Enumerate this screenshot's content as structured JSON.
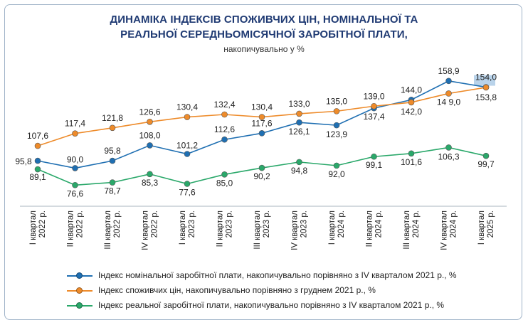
{
  "chart_data": {
    "type": "line",
    "title_lines": [
      "ДИНАМІКА ІНДЕКСІВ СПОЖИВЧИХ ЦІН, НОМІНАЛЬНОЇ ТА",
      "РЕАЛЬНОЇ СЕРЕДНЬОМІСЯЧНОЇ ЗАРОБІТНОЇ ПЛАТИ,"
    ],
    "subtitle": "накопичувально у %",
    "categories": [
      [
        "I квартал",
        "2022 р."
      ],
      [
        "II квартал",
        "2022 р."
      ],
      [
        "III квартал",
        "2022 р."
      ],
      [
        "IV квартал",
        "2022 р."
      ],
      [
        "I квартал",
        "2023 р."
      ],
      [
        "II квартал",
        "2023 р."
      ],
      [
        "III квартал",
        "2023 р."
      ],
      [
        "IV квартал",
        "2023 р."
      ],
      [
        "I квартал",
        "2024 р."
      ],
      [
        "II квартал",
        "2024 р."
      ],
      [
        "III квартал",
        "2024 р."
      ],
      [
        "IV квартал",
        "2024 р."
      ],
      [
        "I квартал",
        "2025 р."
      ]
    ],
    "series": [
      {
        "name": "Індекс номінальної заробітної плати, накопичувально порівняно з IV кварталом 2021 р., %",
        "color": "#1f6fb2",
        "values": [
          95.8,
          90.0,
          95.8,
          108.0,
          101.2,
          112.6,
          117.6,
          126.1,
          123.9,
          137.4,
          144.0,
          158.9,
          154.0
        ],
        "labels": [
          "95,8",
          "90,0",
          "95,8",
          "108,0",
          "101,2",
          "112,6",
          "117,6",
          "126,1",
          "123,9",
          "137,4",
          "144,0",
          "158,9",
          "154,0"
        ]
      },
      {
        "name": "Індекс споживчих цін, накопичувально порівняно з груднем 2021 р., %",
        "color": "#ee8b2a",
        "values": [
          107.6,
          117.4,
          121.8,
          126.6,
          130.4,
          132.4,
          130.4,
          133.0,
          135.0,
          139.0,
          142.0,
          149.0,
          153.8
        ],
        "labels": [
          "107,6",
          "117,4",
          "121,8",
          "126,6",
          "130,4",
          "132,4",
          "130,4",
          "133,0",
          "135,0",
          "139,0",
          "142,0",
          "14 9,0",
          "153,8"
        ]
      },
      {
        "name": "Індекс реальної заробітної плати, накопичувально порівняно з IV кварталом 2021 р., %",
        "color": "#2aa86a",
        "values": [
          89.1,
          76.6,
          78.7,
          85.3,
          77.6,
          85.0,
          90.2,
          94.8,
          92.0,
          99.1,
          101.6,
          106.3,
          99.7
        ],
        "labels": [
          "89,1",
          "76,6",
          "78,7",
          "85,3",
          "77,6",
          "85,0",
          "90,2",
          "94,8",
          "92,0",
          "99,1",
          "101,6",
          "106,3",
          "99,7"
        ]
      }
    ],
    "ylim": [
      70,
      165
    ],
    "grid": false,
    "legend_position": "bottom"
  }
}
